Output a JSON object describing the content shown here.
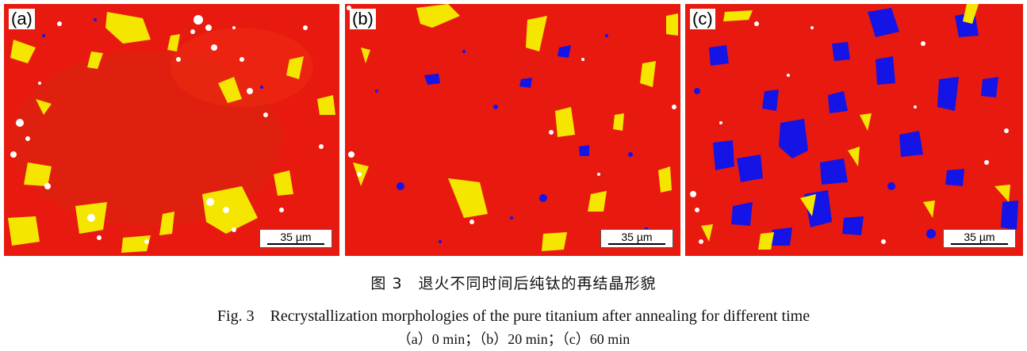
{
  "figure": {
    "panels": [
      {
        "label": "(a)",
        "scale_bar": "35 µm"
      },
      {
        "label": "(b)",
        "scale_bar": "35 µm"
      },
      {
        "label": "(c)",
        "scale_bar": "35 µm"
      }
    ],
    "caption_cn": "图 3　退火不同时间后纯钛的再结晶形貌",
    "caption_en": "Fig. 3　Recrystallization morphologies of the pure titanium after annealing for different time",
    "subcaption": "（a）0 min；（b）20 min；（c）60 min",
    "colors": {
      "matrix": "#e81a10",
      "secondary": "#f5e600",
      "recrystallized": "#1414e6",
      "unindexed": "#ffffff"
    }
  }
}
